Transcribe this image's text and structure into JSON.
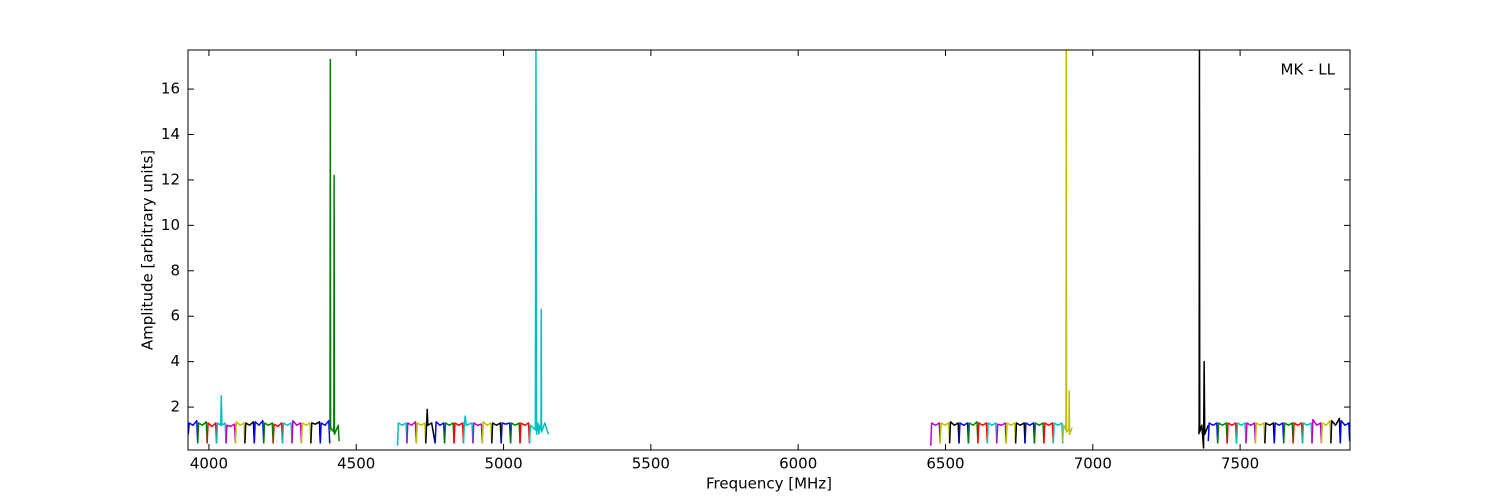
{
  "chart_data": {
    "type": "line",
    "annotation": "MK - LL",
    "xlabel": "Frequency [MHz]",
    "ylabel": "Amplitude [arbitrary units]",
    "xlim": [
      3929,
      7873
    ],
    "ylim": [
      0.11,
      17.72
    ],
    "xticks": [
      4000,
      4500,
      5000,
      5500,
      6000,
      6500,
      7000,
      7500
    ],
    "yticks": [
      2,
      4,
      6,
      8,
      10,
      12,
      14,
      16
    ],
    "series": [
      {
        "color": "#0000ff",
        "x": [
          3930,
          3933,
          3946,
          3959,
          3962
        ],
        "values": [
          0.8,
          1.3,
          1.2,
          1.4,
          0.4
        ]
      },
      {
        "color": "#008000",
        "x": [
          3962,
          3965,
          3978,
          3991,
          3994
        ],
        "values": [
          0.4,
          1.3,
          1.2,
          1.35,
          0.4
        ]
      },
      {
        "color": "#ff0000",
        "x": [
          3994,
          3997,
          4010,
          4023,
          4026
        ],
        "values": [
          0.4,
          1.3,
          1.15,
          1.3,
          0.4
        ]
      },
      {
        "color": "#00bfbf",
        "x": [
          4026,
          4029,
          4040,
          4042,
          4044,
          4055,
          4058
        ],
        "values": [
          0.4,
          1.3,
          1.2,
          2.5,
          1.2,
          1.3,
          0.4
        ]
      },
      {
        "color": "#bf00bf",
        "x": [
          4058,
          4061,
          4074,
          4087,
          4090
        ],
        "values": [
          0.4,
          1.2,
          1.15,
          1.25,
          0.4
        ]
      },
      {
        "color": "#bfbf00",
        "x": [
          4090,
          4093,
          4106,
          4119,
          4122
        ],
        "values": [
          0.4,
          1.35,
          1.2,
          1.3,
          0.4
        ]
      },
      {
        "color": "#000000",
        "x": [
          4122,
          4125,
          4138,
          4151,
          4154
        ],
        "values": [
          0.4,
          1.3,
          1.2,
          1.35,
          0.4
        ]
      },
      {
        "color": "#0000ff",
        "x": [
          4154,
          4157,
          4170,
          4183,
          4186
        ],
        "values": [
          0.4,
          1.35,
          1.2,
          1.4,
          0.4
        ]
      },
      {
        "color": "#008000",
        "x": [
          4186,
          4189,
          4202,
          4215,
          4218
        ],
        "values": [
          0.4,
          1.3,
          1.2,
          1.3,
          0.4
        ]
      },
      {
        "color": "#ff0000",
        "x": [
          4218,
          4221,
          4234,
          4247,
          4250
        ],
        "values": [
          0.4,
          1.25,
          1.15,
          1.3,
          0.4
        ]
      },
      {
        "color": "#00bfbf",
        "x": [
          4250,
          4253,
          4266,
          4279,
          4282
        ],
        "values": [
          0.4,
          1.3,
          1.2,
          1.3,
          0.4
        ]
      },
      {
        "color": "#bf00bf",
        "x": [
          4282,
          4285,
          4298,
          4311,
          4314
        ],
        "values": [
          0.4,
          1.4,
          1.2,
          1.3,
          0.4
        ]
      },
      {
        "color": "#bfbf00",
        "x": [
          4314,
          4317,
          4330,
          4343,
          4346
        ],
        "values": [
          0.4,
          1.3,
          1.2,
          1.3,
          0.4
        ]
      },
      {
        "color": "#000000",
        "x": [
          4346,
          4349,
          4362,
          4375,
          4378
        ],
        "values": [
          0.4,
          1.3,
          1.25,
          1.35,
          0.4
        ]
      },
      {
        "color": "#0000ff",
        "x": [
          4378,
          4381,
          4394,
          4407,
          4410
        ],
        "values": [
          0.4,
          1.3,
          1.2,
          1.4,
          0.4
        ]
      },
      {
        "color": "#008000",
        "x": [
          4410,
          4411,
          4412,
          4413,
          4424,
          4425,
          4426,
          4439,
          4442
        ],
        "values": [
          0.9,
          1.2,
          17.3,
          1.1,
          0.9,
          12.2,
          0.8,
          1.2,
          0.5
        ]
      },
      {
        "color": "#00bfbf",
        "x": [
          4640,
          4643,
          4656,
          4669,
          4672
        ],
        "values": [
          0.3,
          1.3,
          1.2,
          1.3,
          0.4
        ]
      },
      {
        "color": "#bf00bf",
        "x": [
          4672,
          4675,
          4688,
          4701,
          4704
        ],
        "values": [
          0.4,
          1.3,
          1.2,
          1.35,
          0.4
        ]
      },
      {
        "color": "#bfbf00",
        "x": [
          4704,
          4707,
          4720,
          4733,
          4736
        ],
        "values": [
          0.4,
          1.3,
          1.2,
          1.3,
          0.4
        ]
      },
      {
        "color": "#000000",
        "x": [
          4736,
          4739,
          4741,
          4743,
          4756,
          4768
        ],
        "values": [
          0.4,
          1.3,
          1.9,
          1.2,
          1.3,
          0.4
        ]
      },
      {
        "color": "#0000ff",
        "x": [
          4768,
          4771,
          4784,
          4797,
          4800
        ],
        "values": [
          0.4,
          1.35,
          1.2,
          1.3,
          0.4
        ]
      },
      {
        "color": "#008000",
        "x": [
          4800,
          4803,
          4816,
          4829,
          4832
        ],
        "values": [
          0.4,
          1.3,
          1.2,
          1.3,
          0.4
        ]
      },
      {
        "color": "#ff0000",
        "x": [
          4832,
          4835,
          4848,
          4861,
          4864
        ],
        "values": [
          0.4,
          1.3,
          1.2,
          1.3,
          0.4
        ]
      },
      {
        "color": "#00bfbf",
        "x": [
          4864,
          4867,
          4870,
          4873,
          4893,
          4896
        ],
        "values": [
          0.4,
          1.3,
          1.6,
          1.2,
          1.3,
          0.4
        ]
      },
      {
        "color": "#bf00bf",
        "x": [
          4896,
          4899,
          4912,
          4925,
          4928
        ],
        "values": [
          0.4,
          1.3,
          1.2,
          1.25,
          0.4
        ]
      },
      {
        "color": "#bfbf00",
        "x": [
          4928,
          4931,
          4944,
          4957,
          4960
        ],
        "values": [
          0.4,
          1.35,
          1.2,
          1.3,
          0.4
        ]
      },
      {
        "color": "#000000",
        "x": [
          4960,
          4963,
          4976,
          4989,
          4992
        ],
        "values": [
          0.4,
          1.3,
          1.2,
          1.3,
          0.4
        ]
      },
      {
        "color": "#0000ff",
        "x": [
          4992,
          4995,
          5008,
          5021,
          5024
        ],
        "values": [
          0.4,
          1.3,
          1.25,
          1.3,
          0.4
        ]
      },
      {
        "color": "#008000",
        "x": [
          5024,
          5027,
          5040,
          5053,
          5056
        ],
        "values": [
          0.4,
          1.3,
          1.2,
          1.3,
          0.4
        ]
      },
      {
        "color": "#ff0000",
        "x": [
          5056,
          5059,
          5072,
          5085,
          5088
        ],
        "values": [
          0.4,
          1.3,
          1.2,
          1.3,
          0.4
        ]
      },
      {
        "color": "#00bfbf",
        "x": [
          5088,
          5091,
          5108,
          5110,
          5112,
          5117,
          5120
        ],
        "values": [
          0.4,
          1.2,
          1.0,
          17.7,
          0.8,
          1.3,
          0.8
        ]
      },
      {
        "color": "#00bfbf",
        "x": [
          5120,
          5123,
          5127,
          5128,
          5129,
          5140,
          5152
        ],
        "values": [
          0.8,
          1.2,
          1.0,
          6.3,
          0.9,
          1.3,
          0.8
        ]
      },
      {
        "color": "#bf00bf",
        "x": [
          6450,
          6453,
          6466,
          6479,
          6482
        ],
        "values": [
          0.3,
          1.3,
          1.2,
          1.3,
          0.4
        ]
      },
      {
        "color": "#bfbf00",
        "x": [
          6482,
          6485,
          6498,
          6511,
          6514
        ],
        "values": [
          0.4,
          1.3,
          1.2,
          1.3,
          0.4
        ]
      },
      {
        "color": "#000000",
        "x": [
          6514,
          6517,
          6530,
          6543,
          6546
        ],
        "values": [
          0.4,
          1.35,
          1.2,
          1.3,
          0.4
        ]
      },
      {
        "color": "#0000ff",
        "x": [
          6546,
          6549,
          6562,
          6575,
          6578
        ],
        "values": [
          0.4,
          1.3,
          1.2,
          1.3,
          0.4
        ]
      },
      {
        "color": "#008000",
        "x": [
          6578,
          6581,
          6594,
          6607,
          6610
        ],
        "values": [
          0.4,
          1.3,
          1.2,
          1.35,
          0.4
        ]
      },
      {
        "color": "#ff0000",
        "x": [
          6610,
          6613,
          6626,
          6639,
          6642
        ],
        "values": [
          0.4,
          1.3,
          1.2,
          1.3,
          0.4
        ]
      },
      {
        "color": "#00bfbf",
        "x": [
          6642,
          6645,
          6658,
          6671,
          6674
        ],
        "values": [
          0.4,
          1.3,
          1.2,
          1.3,
          0.4
        ]
      },
      {
        "color": "#bf00bf",
        "x": [
          6674,
          6677,
          6690,
          6703,
          6706
        ],
        "values": [
          0.4,
          1.25,
          1.2,
          1.3,
          0.4
        ]
      },
      {
        "color": "#bfbf00",
        "x": [
          6706,
          6709,
          6722,
          6735,
          6738
        ],
        "values": [
          0.4,
          1.3,
          1.2,
          1.3,
          0.4
        ]
      },
      {
        "color": "#000000",
        "x": [
          6738,
          6741,
          6754,
          6767,
          6770
        ],
        "values": [
          0.4,
          1.3,
          1.2,
          1.3,
          0.4
        ]
      },
      {
        "color": "#0000ff",
        "x": [
          6770,
          6773,
          6786,
          6799,
          6802
        ],
        "values": [
          0.4,
          1.3,
          1.2,
          1.3,
          0.4
        ]
      },
      {
        "color": "#008000",
        "x": [
          6802,
          6805,
          6818,
          6831,
          6834
        ],
        "values": [
          0.4,
          1.3,
          1.2,
          1.3,
          0.4
        ]
      },
      {
        "color": "#ff0000",
        "x": [
          6834,
          6837,
          6850,
          6863,
          6866
        ],
        "values": [
          0.4,
          1.3,
          1.2,
          1.3,
          0.4
        ]
      },
      {
        "color": "#00bfbf",
        "x": [
          6866,
          6869,
          6882,
          6895,
          6898
        ],
        "values": [
          0.4,
          1.3,
          1.2,
          1.3,
          0.4
        ]
      },
      {
        "color": "#bfbf00",
        "x": [
          6898,
          6901,
          6909,
          6910,
          6911,
          6919,
          6920,
          6921,
          6930
        ],
        "values": [
          0.5,
          1.2,
          1.0,
          17.7,
          0.9,
          1.0,
          2.7,
          0.8,
          1.1
        ]
      },
      {
        "color": "#000000",
        "x": [
          7360,
          7361,
          7362,
          7363,
          7370,
          7376,
          7378,
          7380,
          7392
        ],
        "values": [
          0.8,
          1.2,
          17.7,
          0.9,
          1.2,
          0.2,
          4.0,
          0.8,
          1.2
        ]
      },
      {
        "color": "#0000ff",
        "x": [
          7392,
          7395,
          7408,
          7421,
          7424
        ],
        "values": [
          0.5,
          1.3,
          1.2,
          1.3,
          0.4
        ]
      },
      {
        "color": "#008000",
        "x": [
          7424,
          7427,
          7440,
          7453,
          7456
        ],
        "values": [
          0.4,
          1.3,
          1.2,
          1.3,
          0.4
        ]
      },
      {
        "color": "#ff0000",
        "x": [
          7456,
          7459,
          7472,
          7485,
          7488
        ],
        "values": [
          0.4,
          1.3,
          1.2,
          1.3,
          0.4
        ]
      },
      {
        "color": "#00bfbf",
        "x": [
          7488,
          7491,
          7504,
          7517,
          7520
        ],
        "values": [
          0.4,
          1.3,
          1.2,
          1.3,
          0.4
        ]
      },
      {
        "color": "#bf00bf",
        "x": [
          7520,
          7523,
          7536,
          7549,
          7552
        ],
        "values": [
          0.4,
          1.3,
          1.2,
          1.3,
          0.4
        ]
      },
      {
        "color": "#bfbf00",
        "x": [
          7552,
          7555,
          7568,
          7581,
          7584
        ],
        "values": [
          0.4,
          1.3,
          1.2,
          1.3,
          0.4
        ]
      },
      {
        "color": "#000000",
        "x": [
          7584,
          7587,
          7600,
          7613,
          7616
        ],
        "values": [
          0.4,
          1.3,
          1.2,
          1.3,
          0.4
        ]
      },
      {
        "color": "#0000ff",
        "x": [
          7616,
          7619,
          7632,
          7645,
          7648
        ],
        "values": [
          0.4,
          1.3,
          1.2,
          1.3,
          0.4
        ]
      },
      {
        "color": "#008000",
        "x": [
          7648,
          7651,
          7664,
          7677,
          7680
        ],
        "values": [
          0.4,
          1.3,
          1.2,
          1.3,
          0.4
        ]
      },
      {
        "color": "#ff0000",
        "x": [
          7680,
          7683,
          7696,
          7709,
          7712
        ],
        "values": [
          0.4,
          1.3,
          1.2,
          1.3,
          0.4
        ]
      },
      {
        "color": "#00bfbf",
        "x": [
          7712,
          7715,
          7728,
          7741,
          7744
        ],
        "values": [
          0.4,
          1.3,
          1.2,
          1.3,
          0.4
        ]
      },
      {
        "color": "#bf00bf",
        "x": [
          7744,
          7747,
          7760,
          7773,
          7776
        ],
        "values": [
          0.4,
          1.45,
          1.2,
          1.3,
          0.4
        ]
      },
      {
        "color": "#bfbf00",
        "x": [
          7776,
          7779,
          7792,
          7805,
          7808
        ],
        "values": [
          0.4,
          1.3,
          1.2,
          1.4,
          0.4
        ]
      },
      {
        "color": "#000000",
        "x": [
          7808,
          7811,
          7824,
          7837,
          7840
        ],
        "values": [
          0.4,
          1.4,
          1.2,
          1.5,
          0.4
        ]
      },
      {
        "color": "#0000ff",
        "x": [
          7840,
          7843,
          7856,
          7869,
          7872
        ],
        "values": [
          0.4,
          1.4,
          1.2,
          1.3,
          0.5
        ]
      }
    ]
  }
}
